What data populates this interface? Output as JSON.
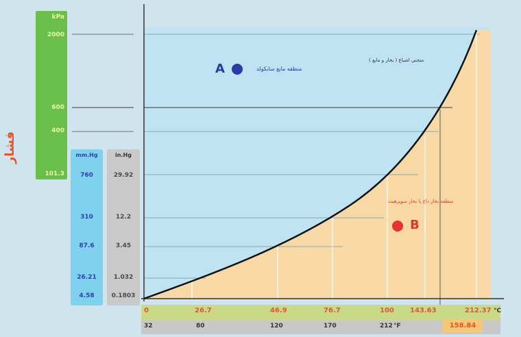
{
  "pressure_title": "فشار",
  "kpa": {
    "unit": "kPa",
    "values": [
      "2000",
      "600",
      "400",
      "101.3"
    ]
  },
  "mmhg": {
    "unit": "mm.Hg",
    "values": [
      "760",
      "310",
      "87.6",
      "26.21",
      "4.58"
    ]
  },
  "inhg": {
    "unit": "in.Hg",
    "values": [
      "29.92",
      "12.2",
      "3.45",
      "1.032",
      "0.1803"
    ]
  },
  "celsius": {
    "unit": "°C",
    "values": [
      "0",
      "26.7",
      "46.9",
      "76.7",
      "100",
      "143.63",
      "212.37"
    ]
  },
  "fahrenheit": {
    "unit": "°F",
    "values": [
      "32",
      "80",
      "120",
      "170",
      "212"
    ]
  },
  "extra_temp": "158.84",
  "regions": {
    "a_letter": "A",
    "a_label": "منطقه مایع سابکولد",
    "b_letter": "B",
    "b_label": "منطقه بخار داغ یا بخار سوپرهیت",
    "curve_label": "منحنی اشباع ( بخار و مایع )"
  },
  "colors": {
    "liquid_region": "#bfe3f2",
    "vapor_region": "#f8d9a5",
    "curve": "#111111",
    "point_a": "#2b3aa8",
    "point_b": "#e8312a"
  }
}
